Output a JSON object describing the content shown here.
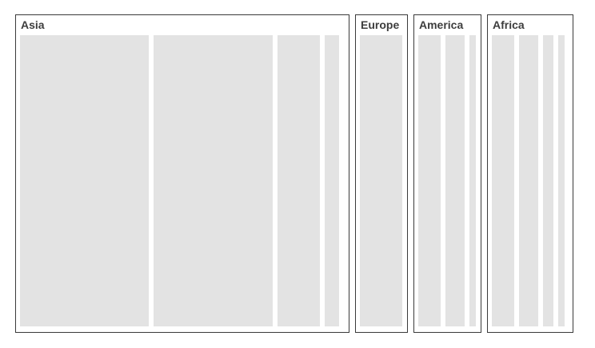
{
  "groups": [
    {
      "title": "Asia"
    },
    {
      "title": "Europe"
    },
    {
      "title": "America"
    },
    {
      "title": "Africa"
    }
  ]
}
